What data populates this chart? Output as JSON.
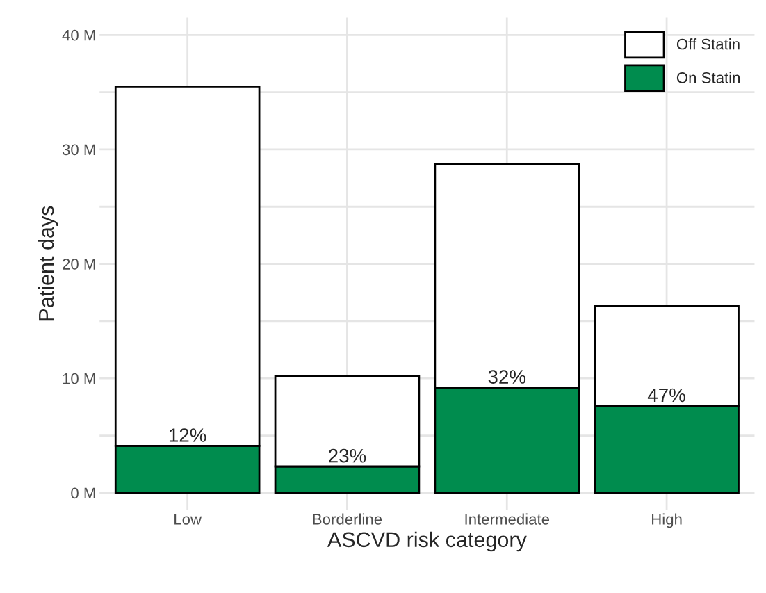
{
  "chart_data": {
    "type": "bar",
    "xlabel": "ASCVD risk category",
    "ylabel": "Patient days",
    "categories": [
      "Low",
      "Borderline",
      "Intermediate",
      "High"
    ],
    "stacked": true,
    "series": [
      {
        "name": "On Statin",
        "color": "#008c4e",
        "values": [
          4.1,
          2.3,
          9.2,
          7.6
        ]
      },
      {
        "name": "Off Statin",
        "color": "#ffffff",
        "values": [
          31.4,
          7.9,
          19.5,
          8.7
        ]
      }
    ],
    "ylim": [
      -1.5,
      41.5
    ],
    "yticks": [
      {
        "value": 0,
        "label": "0 M"
      },
      {
        "value": 5,
        "label": null
      },
      {
        "value": 10,
        "label": "10 M"
      },
      {
        "value": 15,
        "label": null
      },
      {
        "value": 20,
        "label": "20 M"
      },
      {
        "value": 25,
        "label": null
      },
      {
        "value": 30,
        "label": "30 M"
      },
      {
        "value": 35,
        "label": null
      },
      {
        "value": 40,
        "label": "40 M"
      }
    ],
    "annotations": [
      {
        "text": "12%",
        "x": "Low",
        "y": 4.1
      },
      {
        "text": "23%",
        "x": "Borderline",
        "y": 2.3
      },
      {
        "text": "32%",
        "x": "Intermediate",
        "y": 9.2
      },
      {
        "text": "47%",
        "x": "High",
        "y": 7.6
      }
    ],
    "grid": true,
    "legend": "top right"
  }
}
